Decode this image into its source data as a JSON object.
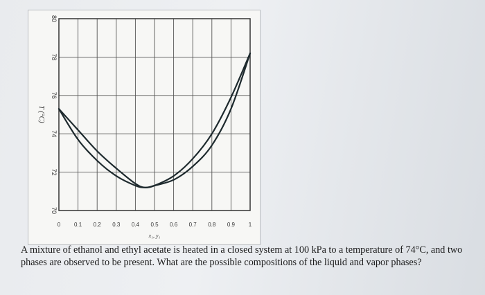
{
  "chart_data": {
    "type": "line",
    "xlabel": "x₁, y₁",
    "ylabel": "T (°C)",
    "xlim": [
      0,
      1
    ],
    "ylim": [
      70,
      80
    ],
    "x_ticks": [
      "0",
      "0.1",
      "0.2",
      "0.3",
      "0.4",
      "0.5",
      "0.6",
      "0.7",
      "0.8",
      "0.9",
      "1"
    ],
    "y_ticks": [
      "70",
      "72",
      "74",
      "76",
      "78",
      "80"
    ],
    "grid": true,
    "series": [
      {
        "x": [
          0,
          0.1,
          0.2,
          0.3,
          0.4,
          0.45,
          0.5,
          0.6,
          0.7,
          0.8,
          0.9,
          1.0
        ],
        "y": [
          75.3,
          73.7,
          72.6,
          71.8,
          71.3,
          71.2,
          71.3,
          71.8,
          72.7,
          74.0,
          75.9,
          78.2
        ]
      },
      {
        "x": [
          0,
          0.1,
          0.2,
          0.3,
          0.4,
          0.45,
          0.5,
          0.6,
          0.7,
          0.8,
          0.9,
          1.0
        ],
        "y": [
          75.3,
          74.2,
          73.1,
          72.2,
          71.4,
          71.2,
          71.3,
          71.6,
          72.3,
          73.4,
          75.3,
          78.2
        ]
      }
    ]
  },
  "question": {
    "text": "A mixture of ethanol and ethyl acetate is heated in a closed system at 100 kPa to a temperature of 74°C, and two phases are observed to be present. What are the possible compositions of the liquid and vapor phases?"
  }
}
